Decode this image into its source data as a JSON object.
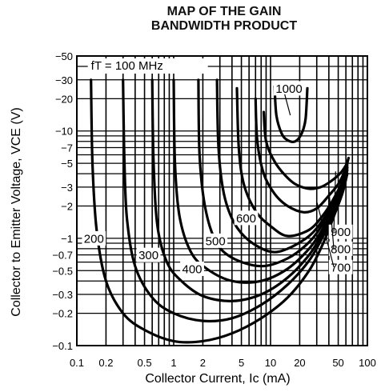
{
  "chart_data": {
    "type": "line",
    "title_lines": [
      "MAP OF THE GAIN",
      "BANDWIDTH PRODUCT"
    ],
    "xlabel": "Collector Current, Ic (mA)",
    "ylabel": "Collector to Emitter Voltage, VCE (V)",
    "x_scale": "log",
    "y_scale": "log",
    "xlim": [
      0.1,
      100
    ],
    "ylim": [
      -0.1,
      -50
    ],
    "x_ticks": [
      {
        "v": 0.1,
        "label": "0.1"
      },
      {
        "v": 0.2,
        "label": "0.2"
      },
      {
        "v": 0.5,
        "label": "0.5"
      },
      {
        "v": 1,
        "label": "1"
      },
      {
        "v": 2,
        "label": "2"
      },
      {
        "v": 5,
        "label": "5"
      },
      {
        "v": 10,
        "label": "10"
      },
      {
        "v": 20,
        "label": "20"
      },
      {
        "v": 50,
        "label": "50"
      },
      {
        "v": 100,
        "label": "100"
      }
    ],
    "y_ticks": [
      {
        "v": 50,
        "label": "−50"
      },
      {
        "v": 30,
        "label": "−30"
      },
      {
        "v": 20,
        "label": "−20"
      },
      {
        "v": 10,
        "label": "−10"
      },
      {
        "v": 7,
        "label": "−7"
      },
      {
        "v": 5,
        "label": "−5"
      },
      {
        "v": 3,
        "label": "−3"
      },
      {
        "v": 2,
        "label": "−2"
      },
      {
        "v": 1,
        "label": "−1"
      },
      {
        "v": 0.7,
        "label": "−0.7"
      },
      {
        "v": 0.5,
        "label": "−0.5"
      },
      {
        "v": 0.3,
        "label": "−0.3"
      },
      {
        "v": 0.2,
        "label": "−0.2"
      },
      {
        "v": 0.1,
        "label": "−0.1"
      }
    ],
    "grid": true,
    "annotation": "fT = 100 MHz",
    "series": [
      {
        "name": "100",
        "x": [
          0.14,
          0.145,
          0.16,
          0.2,
          0.3,
          0.5,
          1,
          2,
          4,
          8,
          15,
          25,
          35,
          45,
          55,
          62
        ],
        "y": [
          30,
          5,
          1.2,
          0.4,
          0.2,
          0.14,
          0.11,
          0.11,
          0.13,
          0.18,
          0.28,
          0.5,
          0.9,
          1.6,
          2.6,
          4
        ]
      },
      {
        "name": "200",
        "x": [
          0.3,
          0.31,
          0.33,
          0.4,
          0.6,
          1,
          2,
          4,
          8,
          15,
          25,
          35,
          45,
          55,
          62
        ],
        "y": [
          30,
          5,
          1.5,
          0.55,
          0.28,
          0.2,
          0.17,
          0.18,
          0.24,
          0.37,
          0.62,
          1.05,
          1.7,
          2.8,
          4.3
        ]
      },
      {
        "name": "300",
        "x": [
          0.6,
          0.62,
          0.68,
          0.85,
          1.2,
          2,
          4,
          8,
          15,
          25,
          35,
          45,
          55,
          62
        ],
        "y": [
          30,
          5,
          1.3,
          0.6,
          0.4,
          0.29,
          0.26,
          0.3,
          0.43,
          0.7,
          1.15,
          1.85,
          3,
          4.5
        ]
      },
      {
        "name": "400",
        "x": [
          1.0,
          1.03,
          1.15,
          1.5,
          2.2,
          4,
          8,
          15,
          25,
          35,
          45,
          55,
          62
        ],
        "y": [
          30,
          5,
          1.6,
          0.75,
          0.52,
          0.4,
          0.4,
          0.52,
          0.8,
          1.25,
          2,
          3.1,
          4.6
        ]
      },
      {
        "name": "500",
        "x": [
          1.8,
          1.85,
          2.1,
          2.7,
          4,
          8,
          15,
          25,
          35,
          45,
          55,
          62
        ],
        "y": [
          30,
          6,
          2,
          0.95,
          0.66,
          0.55,
          0.65,
          0.92,
          1.38,
          2.1,
          3.2,
          4.8
        ]
      },
      {
        "name": "600",
        "x": [
          2.8,
          2.9,
          3.3,
          4.2,
          6,
          10,
          15,
          25,
          35,
          45,
          55,
          62
        ],
        "y": [
          30,
          7,
          2.6,
          1.4,
          0.95,
          0.75,
          0.8,
          1.05,
          1.5,
          2.25,
          3.3,
          5
        ]
      },
      {
        "name": "700",
        "x": [
          4.5,
          4.7,
          5.3,
          7,
          10,
          15,
          25,
          35,
          45,
          55,
          62
        ],
        "y": [
          25,
          7,
          3.2,
          1.8,
          1.3,
          1.05,
          1.2,
          1.65,
          2.35,
          3.4,
          5.1
        ]
      },
      {
        "name": "800",
        "x": [
          7,
          7.3,
          8.5,
          11,
          15,
          22,
          30,
          40,
          50,
          58,
          63
        ],
        "y": [
          20,
          8,
          4,
          2.6,
          2.0,
          1.75,
          1.9,
          2.5,
          3.2,
          4.2,
          5.3
        ]
      },
      {
        "name": "900",
        "x": [
          8.5,
          9,
          11,
          14,
          18,
          25,
          33,
          42,
          52,
          60,
          64
        ],
        "y": [
          15,
          8,
          5.2,
          3.9,
          3.2,
          2.9,
          3.0,
          3.4,
          4.0,
          4.8,
          5.6
        ]
      },
      {
        "name": "1000",
        "x": [
          11,
          11.5,
          13,
          15,
          18,
          21,
          23,
          24
        ],
        "y": [
          26,
          14,
          9.5,
          8.2,
          8.0,
          9.5,
          13,
          25
        ]
      }
    ],
    "series_labels": [
      "200",
      "300",
      "400",
      "500",
      "600",
      "700",
      "800",
      "900",
      "1000"
    ]
  }
}
